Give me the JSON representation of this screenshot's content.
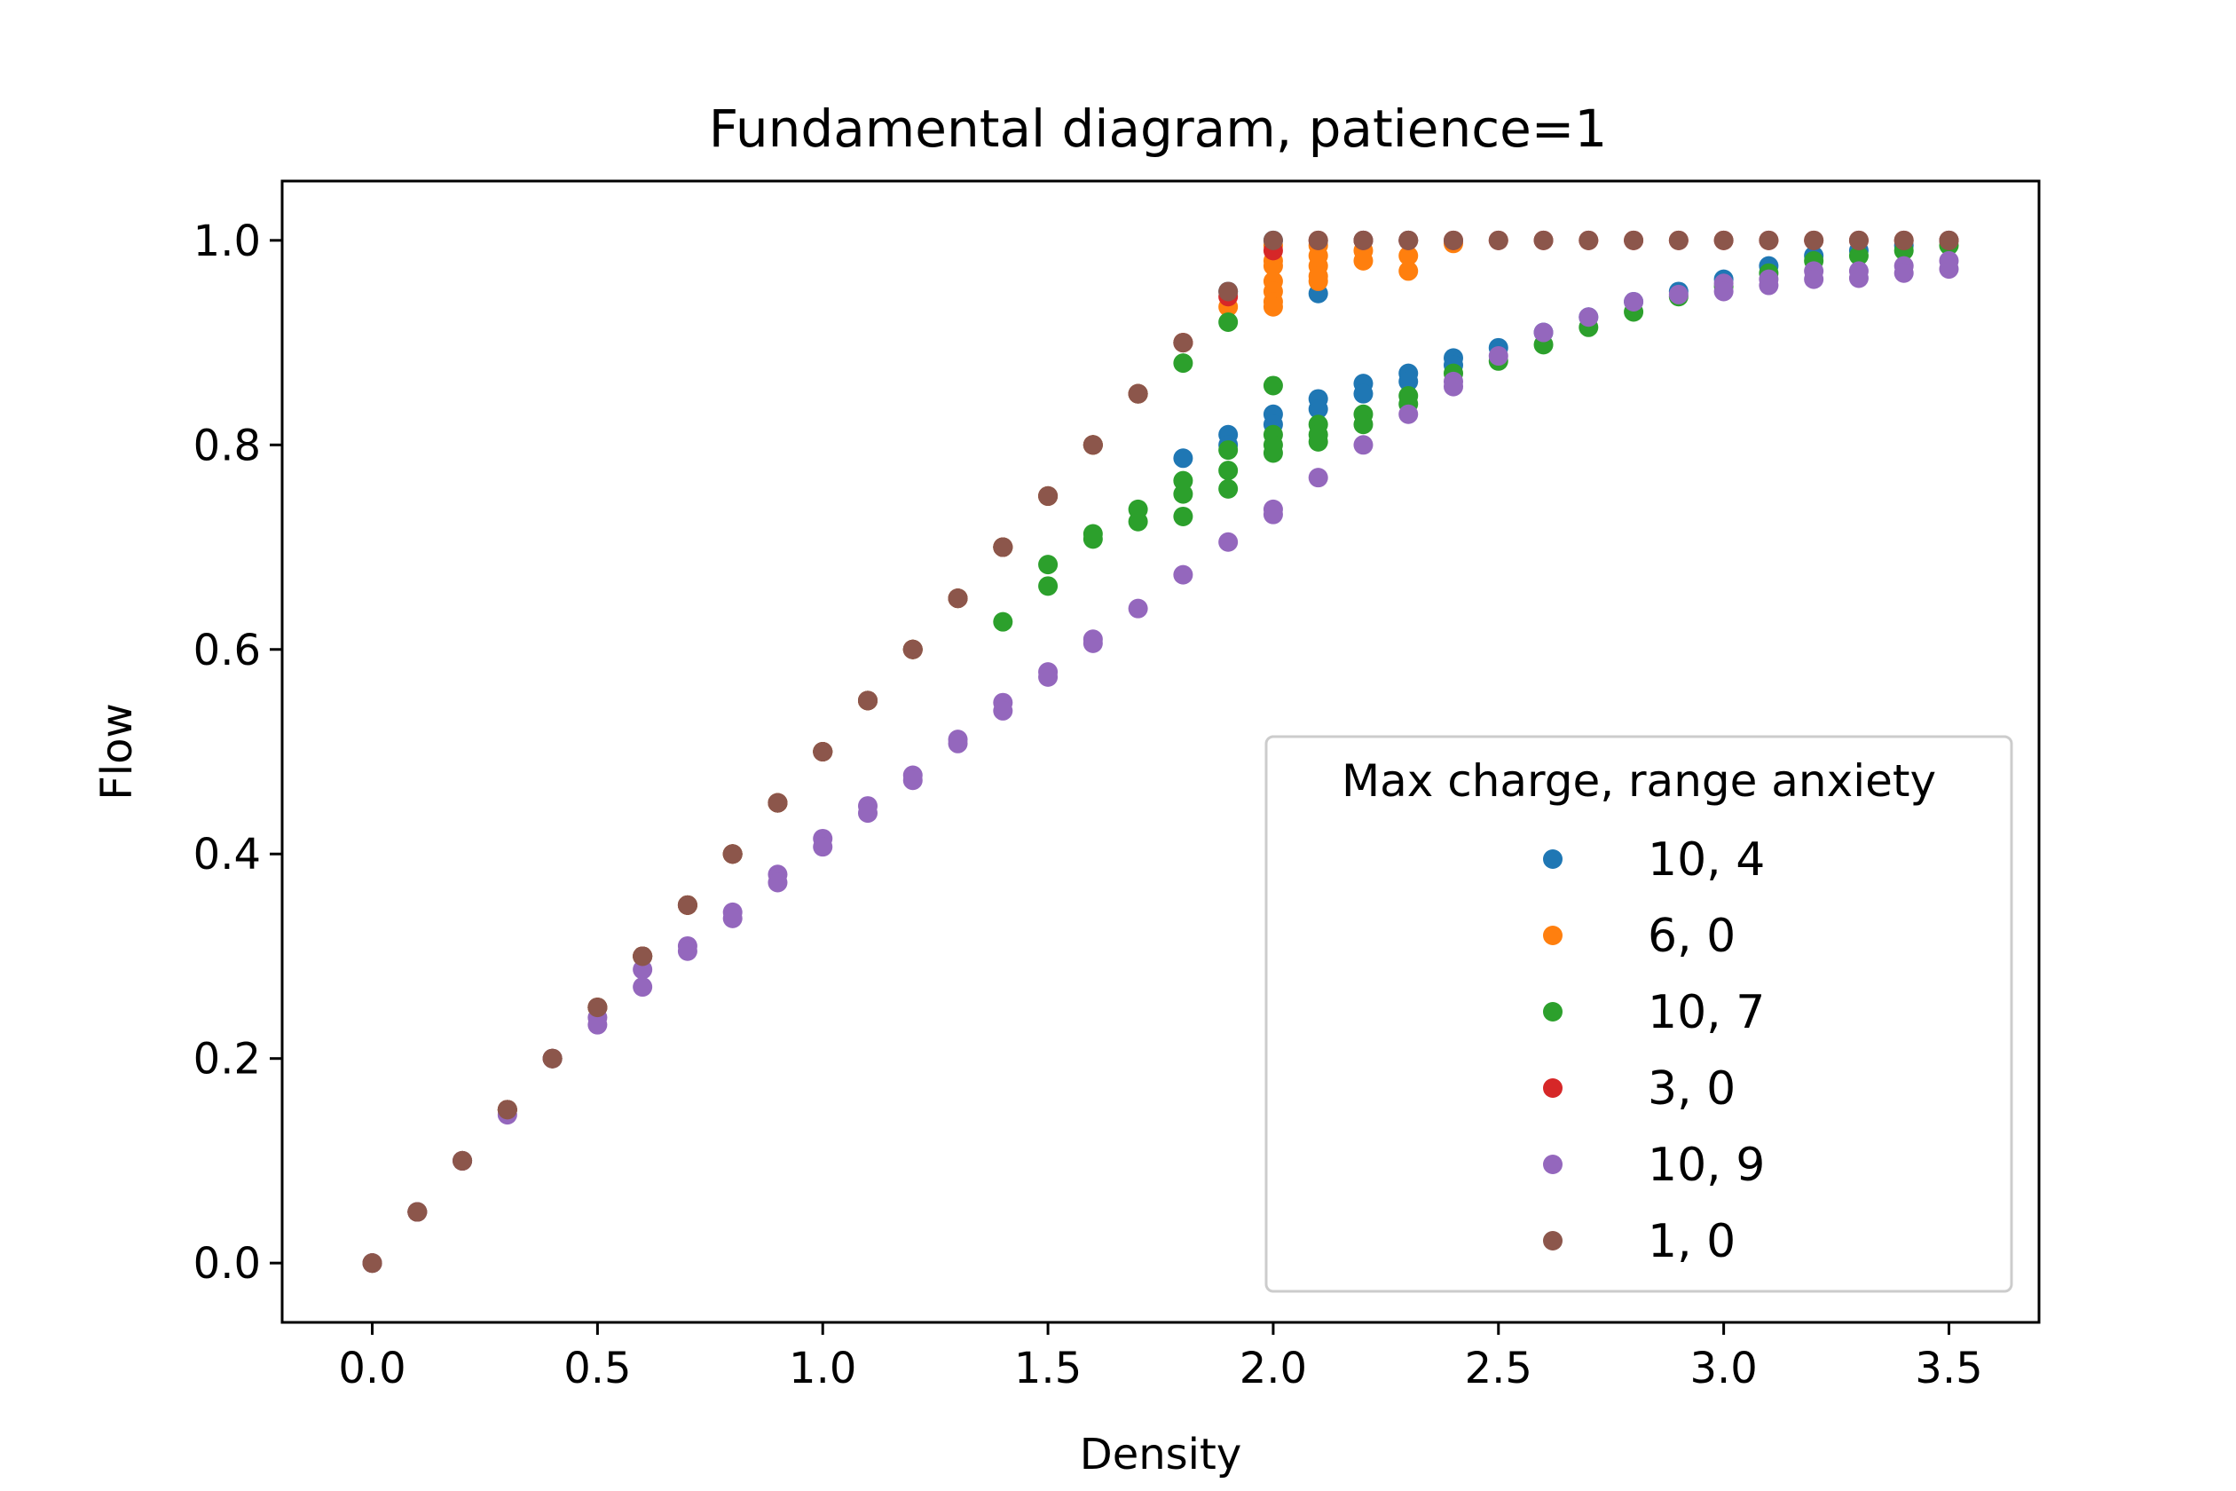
{
  "chart_data": {
    "type": "scatter",
    "title": "Fundamental diagram, patience=1",
    "xlabel": "Density",
    "ylabel": "Flow",
    "xlim": [
      -0.2,
      3.7
    ],
    "ylim": [
      -0.058,
      1.058
    ],
    "xticks": [
      "0.0",
      "0.5",
      "1.0",
      "1.5",
      "2.0",
      "2.5",
      "3.0",
      "3.5"
    ],
    "yticks": [
      "0.0",
      "0.2",
      "0.4",
      "0.6",
      "0.8",
      "1.0"
    ],
    "grid": false,
    "legend": {
      "title": "Max charge, range anxiety",
      "placement": "lower-right"
    },
    "series": [
      {
        "name": "10, 4",
        "color": "#1f77b4",
        "points": [
          [
            0.0,
            0.0
          ],
          [
            0.1,
            0.05
          ],
          [
            0.2,
            0.1
          ],
          [
            0.3,
            0.15
          ],
          [
            0.4,
            0.2
          ],
          [
            0.5,
            0.25
          ],
          [
            0.6,
            0.3
          ],
          [
            0.7,
            0.35
          ],
          [
            0.8,
            0.4
          ],
          [
            0.9,
            0.45
          ],
          [
            1.0,
            0.5
          ],
          [
            1.1,
            0.55
          ],
          [
            1.2,
            0.6
          ],
          [
            1.3,
            0.65
          ],
          [
            1.4,
            0.7
          ],
          [
            1.5,
            0.75
          ],
          [
            1.6,
            0.8
          ],
          [
            1.7,
            0.85
          ],
          [
            1.8,
            0.9
          ],
          [
            1.9,
            0.95
          ],
          [
            1.8,
            0.787
          ],
          [
            1.9,
            0.81
          ],
          [
            1.9,
            0.8
          ],
          [
            2.0,
            0.83
          ],
          [
            2.0,
            0.82
          ],
          [
            2.1,
            0.845
          ],
          [
            2.1,
            0.835
          ],
          [
            2.2,
            0.86
          ],
          [
            2.2,
            0.85
          ],
          [
            2.3,
            0.87
          ],
          [
            2.3,
            0.862
          ],
          [
            2.4,
            0.885
          ],
          [
            2.4,
            0.878
          ],
          [
            2.5,
            0.895
          ],
          [
            2.6,
            0.91
          ],
          [
            2.7,
            0.925
          ],
          [
            2.8,
            0.94
          ],
          [
            2.9,
            0.95
          ],
          [
            3.0,
            0.962
          ],
          [
            3.1,
            0.975
          ],
          [
            3.2,
            0.985
          ],
          [
            3.3,
            0.99
          ],
          [
            3.4,
            0.995
          ],
          [
            3.5,
            1.0
          ],
          [
            2.0,
            1.0
          ],
          [
            2.1,
            0.948
          ],
          [
            2.2,
            1.0
          ],
          [
            2.3,
            1.0
          ]
        ]
      },
      {
        "name": "6, 0",
        "color": "#ff7f0e",
        "points": [
          [
            0.0,
            0.0
          ],
          [
            0.1,
            0.05
          ],
          [
            0.2,
            0.1
          ],
          [
            0.3,
            0.15
          ],
          [
            0.4,
            0.2
          ],
          [
            0.5,
            0.25
          ],
          [
            0.6,
            0.3
          ],
          [
            0.7,
            0.35
          ],
          [
            0.8,
            0.4
          ],
          [
            0.9,
            0.45
          ],
          [
            1.0,
            0.5
          ],
          [
            1.1,
            0.55
          ],
          [
            1.2,
            0.6
          ],
          [
            1.3,
            0.65
          ],
          [
            1.4,
            0.7
          ],
          [
            1.5,
            0.75
          ],
          [
            1.6,
            0.8
          ],
          [
            1.7,
            0.85
          ],
          [
            1.8,
            0.9
          ],
          [
            1.9,
            0.935
          ],
          [
            2.0,
            0.995
          ],
          [
            2.0,
            0.98
          ],
          [
            2.0,
            0.975
          ],
          [
            2.0,
            0.96
          ],
          [
            2.0,
            0.95
          ],
          [
            2.0,
            0.94
          ],
          [
            2.0,
            0.935
          ],
          [
            2.1,
            0.995
          ],
          [
            2.1,
            0.985
          ],
          [
            2.1,
            0.975
          ],
          [
            2.1,
            0.965
          ],
          [
            2.1,
            0.96
          ],
          [
            2.2,
            0.99
          ],
          [
            2.2,
            0.98
          ],
          [
            2.3,
            0.985
          ],
          [
            2.3,
            0.97
          ],
          [
            2.4,
            0.997
          ]
        ]
      },
      {
        "name": "10, 7",
        "color": "#2ca02c",
        "points": [
          [
            0.0,
            0.0
          ],
          [
            0.1,
            0.05
          ],
          [
            0.2,
            0.1
          ],
          [
            0.3,
            0.15
          ],
          [
            0.4,
            0.2
          ],
          [
            0.5,
            0.25
          ],
          [
            0.6,
            0.3
          ],
          [
            0.7,
            0.35
          ],
          [
            0.8,
            0.4
          ],
          [
            0.9,
            0.45
          ],
          [
            1.0,
            0.5
          ],
          [
            1.1,
            0.55
          ],
          [
            1.2,
            0.6
          ],
          [
            1.3,
            0.65
          ],
          [
            1.4,
            0.7
          ],
          [
            1.5,
            0.75
          ],
          [
            1.6,
            0.8
          ],
          [
            1.7,
            0.85
          ],
          [
            1.8,
            0.88
          ],
          [
            1.9,
            0.92
          ],
          [
            1.4,
            0.627
          ],
          [
            1.5,
            0.683
          ],
          [
            1.5,
            0.662
          ],
          [
            1.6,
            0.713
          ],
          [
            1.6,
            0.708
          ],
          [
            1.7,
            0.737
          ],
          [
            1.7,
            0.725
          ],
          [
            1.8,
            0.765
          ],
          [
            1.8,
            0.752
          ],
          [
            1.8,
            0.73
          ],
          [
            1.9,
            0.795
          ],
          [
            1.9,
            0.775
          ],
          [
            1.9,
            0.757
          ],
          [
            2.0,
            0.858
          ],
          [
            2.0,
            0.81
          ],
          [
            2.0,
            0.8
          ],
          [
            2.0,
            0.792
          ],
          [
            2.1,
            0.82
          ],
          [
            2.1,
            0.81
          ],
          [
            2.1,
            0.803
          ],
          [
            2.2,
            0.83
          ],
          [
            2.2,
            0.82
          ],
          [
            2.3,
            0.848
          ],
          [
            2.3,
            0.84
          ],
          [
            2.4,
            0.87
          ],
          [
            2.5,
            0.882
          ],
          [
            2.6,
            0.898
          ],
          [
            2.7,
            0.915
          ],
          [
            2.8,
            0.93
          ],
          [
            2.9,
            0.945
          ],
          [
            3.0,
            0.955
          ],
          [
            3.1,
            0.968
          ],
          [
            3.2,
            0.98
          ],
          [
            3.3,
            0.985
          ],
          [
            3.4,
            0.99
          ],
          [
            3.5,
            0.995
          ]
        ]
      },
      {
        "name": "3, 0",
        "color": "#d62728",
        "points": [
          [
            0.0,
            0.0
          ],
          [
            0.1,
            0.05
          ],
          [
            0.2,
            0.1
          ],
          [
            0.3,
            0.15
          ],
          [
            0.4,
            0.2
          ],
          [
            0.5,
            0.25
          ],
          [
            0.6,
            0.3
          ],
          [
            0.7,
            0.35
          ],
          [
            0.8,
            0.4
          ],
          [
            0.9,
            0.45
          ],
          [
            1.0,
            0.5
          ],
          [
            1.1,
            0.55
          ],
          [
            1.2,
            0.6
          ],
          [
            1.3,
            0.65
          ],
          [
            1.4,
            0.7
          ],
          [
            1.5,
            0.75
          ],
          [
            1.6,
            0.8
          ],
          [
            1.7,
            0.85
          ],
          [
            1.8,
            0.9
          ],
          [
            1.9,
            0.945
          ],
          [
            2.0,
            0.99
          ],
          [
            2.1,
            1.0
          ],
          [
            2.2,
            1.0
          ],
          [
            2.3,
            1.0
          ],
          [
            2.4,
            1.0
          ],
          [
            2.5,
            1.0
          ],
          [
            2.6,
            1.0
          ],
          [
            2.7,
            1.0
          ],
          [
            2.8,
            1.0
          ],
          [
            2.9,
            1.0
          ],
          [
            3.0,
            1.0
          ],
          [
            3.1,
            1.0
          ],
          [
            3.2,
            1.0
          ],
          [
            3.3,
            1.0
          ],
          [
            3.4,
            1.0
          ],
          [
            3.5,
            1.0
          ]
        ]
      },
      {
        "name": "10, 9",
        "color": "#9467bd",
        "points": [
          [
            0.0,
            0.0
          ],
          [
            0.1,
            0.05
          ],
          [
            0.2,
            0.1
          ],
          [
            0.3,
            0.145
          ],
          [
            0.4,
            0.2
          ],
          [
            0.5,
            0.24
          ],
          [
            0.5,
            0.233
          ],
          [
            0.6,
            0.287
          ],
          [
            0.6,
            0.27
          ],
          [
            0.7,
            0.31
          ],
          [
            0.7,
            0.305
          ],
          [
            0.8,
            0.343
          ],
          [
            0.8,
            0.337
          ],
          [
            0.9,
            0.38
          ],
          [
            0.9,
            0.372
          ],
          [
            1.0,
            0.415
          ],
          [
            1.0,
            0.407
          ],
          [
            1.1,
            0.447
          ],
          [
            1.1,
            0.44
          ],
          [
            1.2,
            0.477
          ],
          [
            1.2,
            0.472
          ],
          [
            1.3,
            0.512
          ],
          [
            1.3,
            0.508
          ],
          [
            1.4,
            0.548
          ],
          [
            1.4,
            0.54
          ],
          [
            1.5,
            0.578
          ],
          [
            1.5,
            0.573
          ],
          [
            1.6,
            0.61
          ],
          [
            1.6,
            0.606
          ],
          [
            1.7,
            0.64
          ],
          [
            1.8,
            0.673
          ],
          [
            1.9,
            0.705
          ],
          [
            2.0,
            0.737
          ],
          [
            2.0,
            0.732
          ],
          [
            2.1,
            0.768
          ],
          [
            2.2,
            0.8
          ],
          [
            2.3,
            0.83
          ],
          [
            2.4,
            0.862
          ],
          [
            2.4,
            0.857
          ],
          [
            2.5,
            0.887
          ],
          [
            2.6,
            0.91
          ],
          [
            2.7,
            0.925
          ],
          [
            2.8,
            0.94
          ],
          [
            2.9,
            0.947
          ],
          [
            3.0,
            0.958
          ],
          [
            3.0,
            0.95
          ],
          [
            3.1,
            0.962
          ],
          [
            3.1,
            0.956
          ],
          [
            3.2,
            0.97
          ],
          [
            3.2,
            0.962
          ],
          [
            3.3,
            0.97
          ],
          [
            3.3,
            0.963
          ],
          [
            3.4,
            0.975
          ],
          [
            3.4,
            0.968
          ],
          [
            3.5,
            0.98
          ],
          [
            3.5,
            0.972
          ]
        ]
      },
      {
        "name": "1, 0",
        "color": "#8c564b",
        "points": [
          [
            0.0,
            0.0
          ],
          [
            0.1,
            0.05
          ],
          [
            0.2,
            0.1
          ],
          [
            0.3,
            0.15
          ],
          [
            0.4,
            0.2
          ],
          [
            0.5,
            0.25
          ],
          [
            0.6,
            0.3
          ],
          [
            0.7,
            0.35
          ],
          [
            0.8,
            0.4
          ],
          [
            0.9,
            0.45
          ],
          [
            1.0,
            0.5
          ],
          [
            1.1,
            0.55
          ],
          [
            1.2,
            0.6
          ],
          [
            1.3,
            0.65
          ],
          [
            1.4,
            0.7
          ],
          [
            1.5,
            0.75
          ],
          [
            1.6,
            0.8
          ],
          [
            1.7,
            0.85
          ],
          [
            1.8,
            0.9
          ],
          [
            1.9,
            0.95
          ],
          [
            2.0,
            1.0
          ],
          [
            2.1,
            1.0
          ],
          [
            2.2,
            1.0
          ],
          [
            2.3,
            1.0
          ],
          [
            2.4,
            1.0
          ],
          [
            2.5,
            1.0
          ],
          [
            2.6,
            1.0
          ],
          [
            2.7,
            1.0
          ],
          [
            2.8,
            1.0
          ],
          [
            2.9,
            1.0
          ],
          [
            3.0,
            1.0
          ],
          [
            3.1,
            1.0
          ],
          [
            3.2,
            1.0
          ],
          [
            3.3,
            1.0
          ],
          [
            3.4,
            1.0
          ],
          [
            3.5,
            1.0
          ]
        ]
      }
    ]
  }
}
